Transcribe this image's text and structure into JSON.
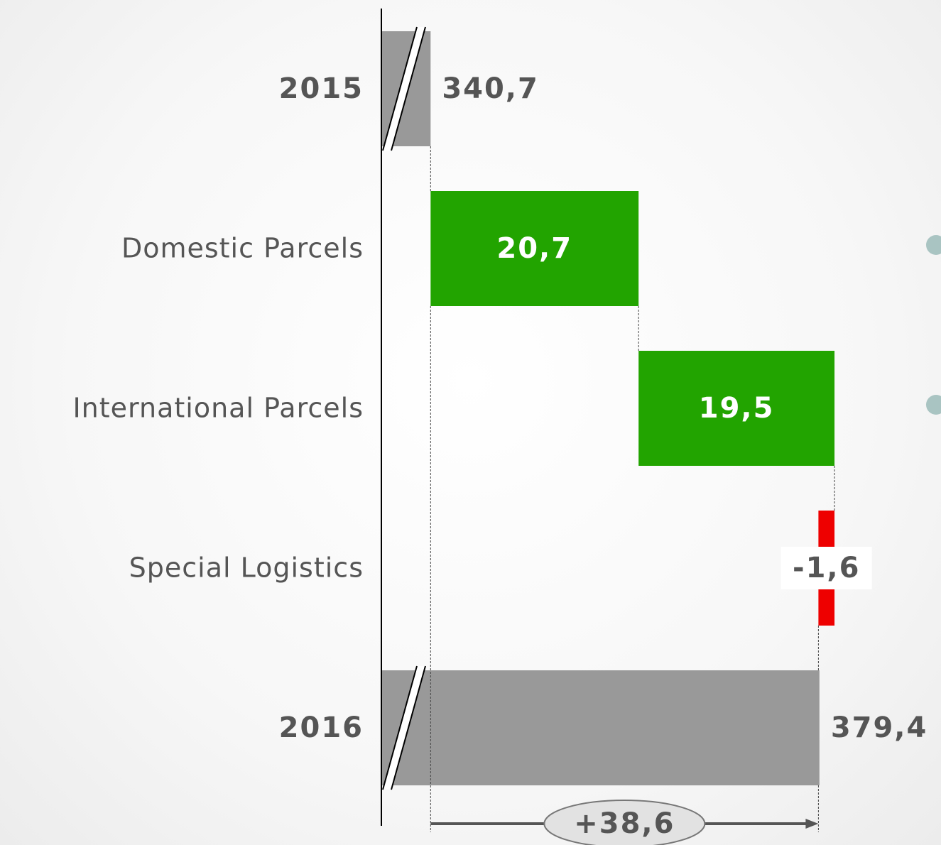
{
  "chart_data": {
    "type": "waterfall",
    "categories": [
      "2015",
      "Domestic Parcels",
      "International Parcels",
      "Special Logistics",
      "2016"
    ],
    "values": [
      340.7,
      20.7,
      19.5,
      -1.6,
      379.4
    ],
    "value_labels": [
      "340,7",
      "20,7",
      "19,5",
      "-1,6",
      "379,4"
    ],
    "measures": [
      "total",
      "relative",
      "relative",
      "relative",
      "total"
    ],
    "colors": {
      "total": "#999999",
      "increase": "#22a400",
      "decrease": "#ee0000"
    },
    "xlim": [
      335.8,
      391.5
    ],
    "axis_break": true,
    "difference": {
      "value": 38.6,
      "label": "+38,6"
    }
  }
}
